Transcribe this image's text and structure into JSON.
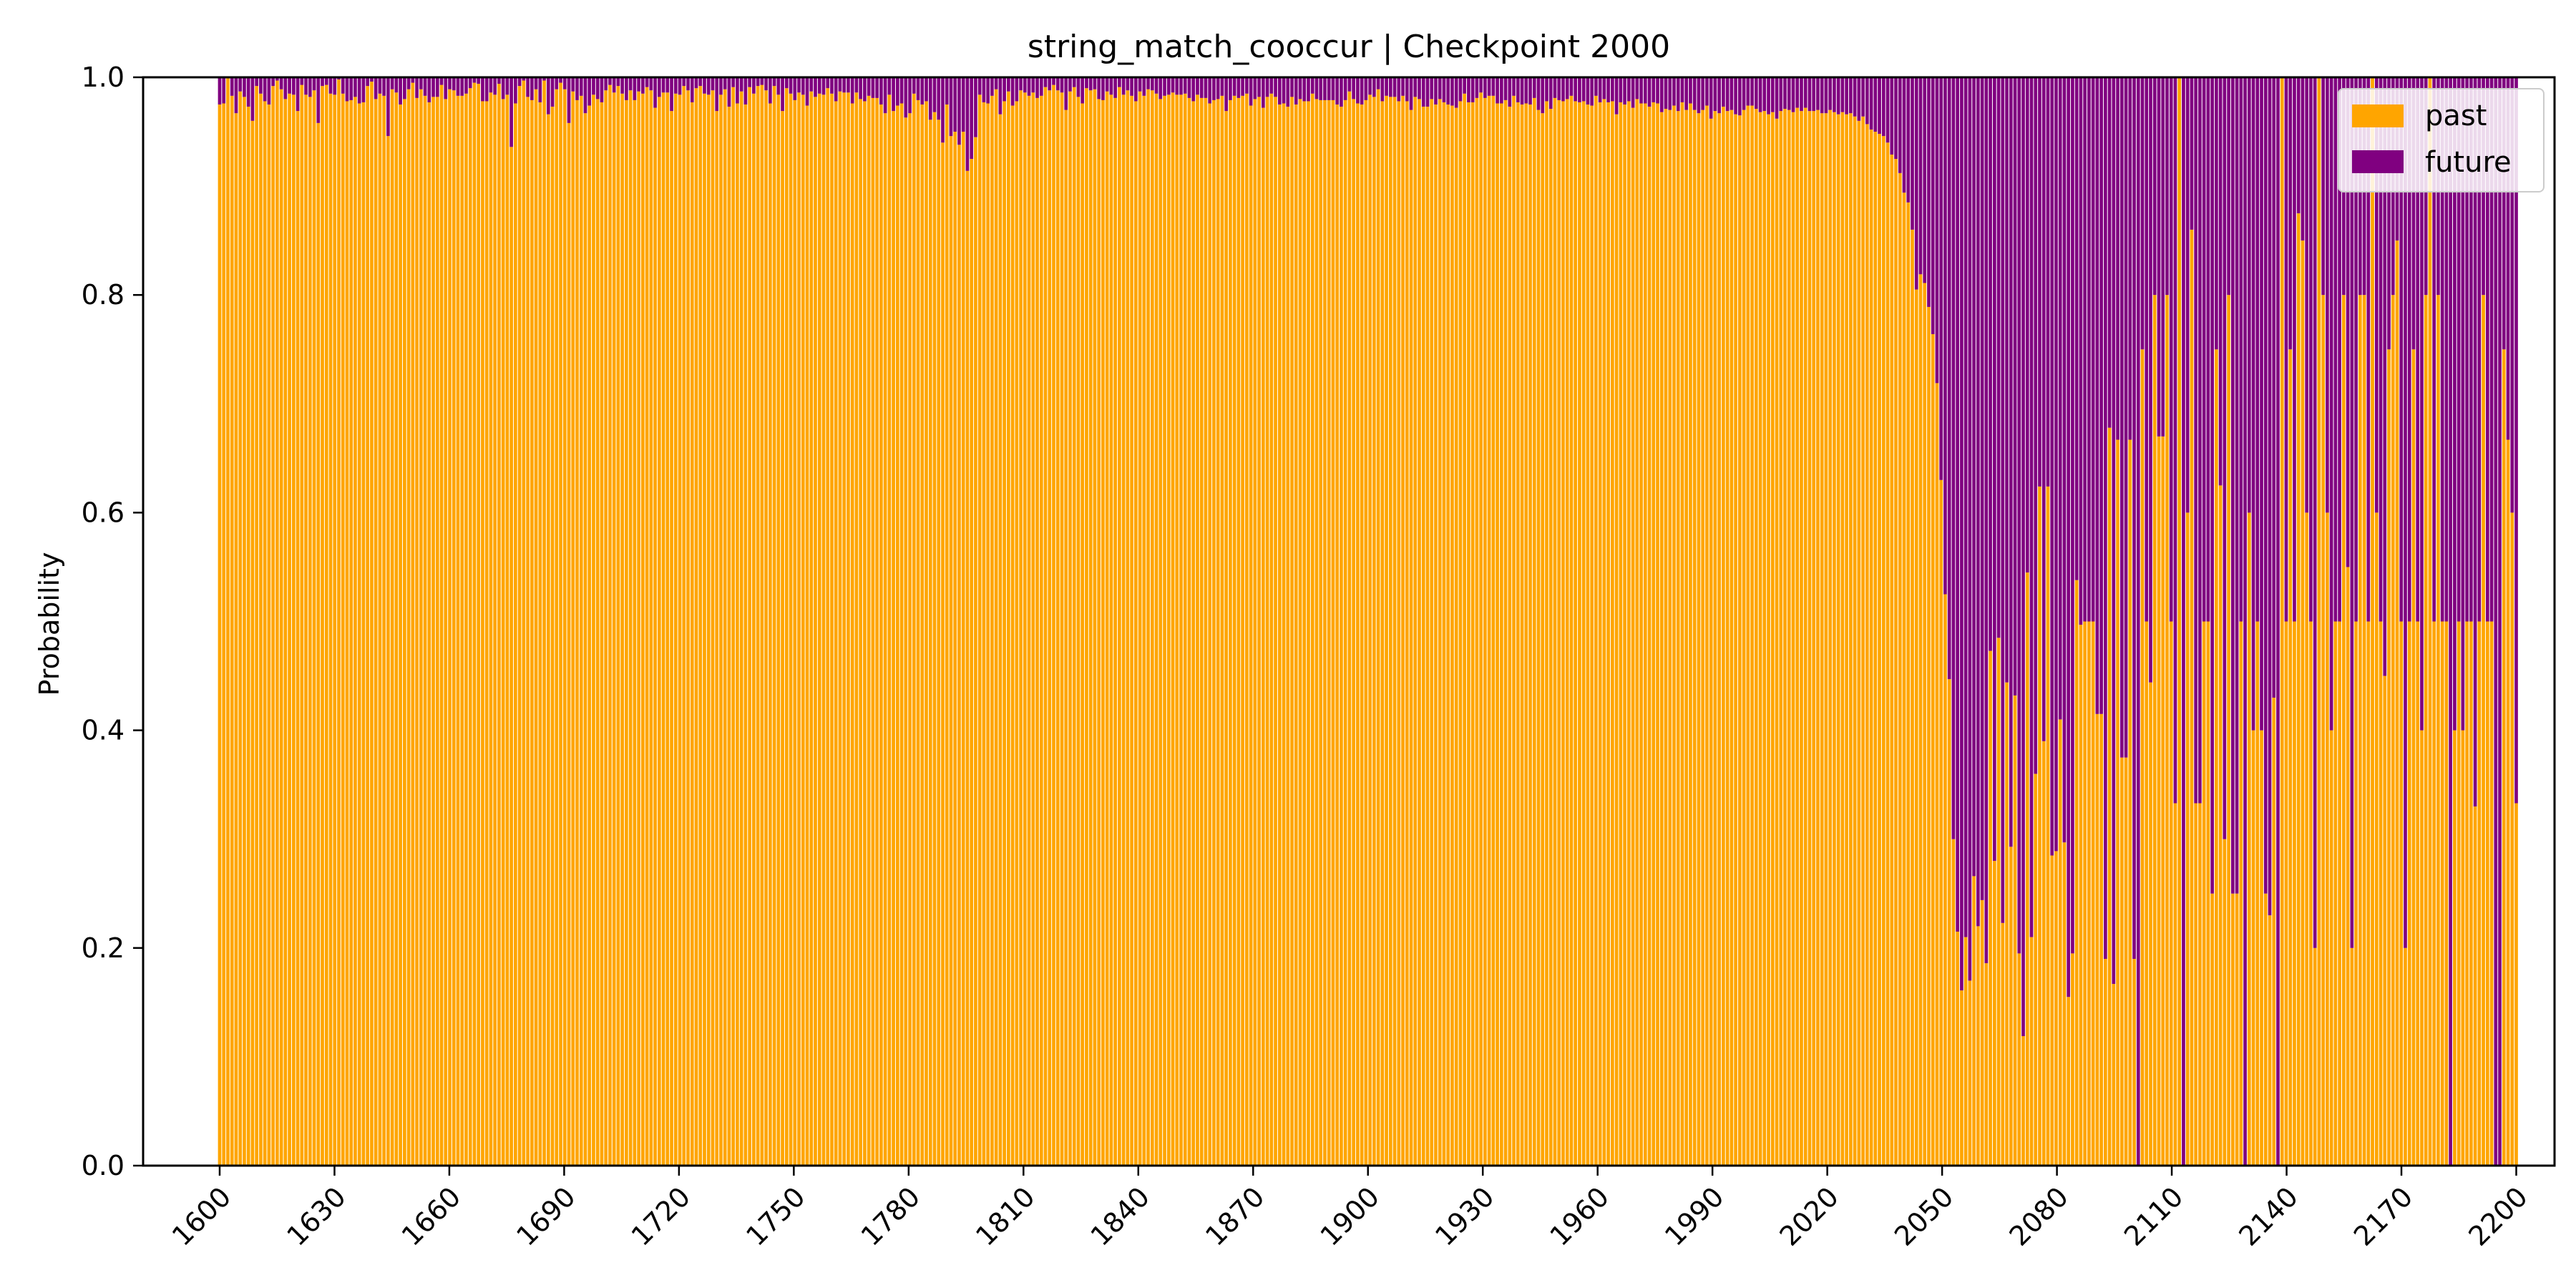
{
  "chart_data": {
    "type": "bar",
    "stacked": true,
    "title": "string_match_cooccur | Checkpoint 2000",
    "xlabel": "",
    "ylabel": "Probability",
    "xlim": [
      1580,
      2210
    ],
    "ylim": [
      0,
      1.0
    ],
    "x_ticks": [
      "1600",
      "1630",
      "1660",
      "1690",
      "1720",
      "1750",
      "1780",
      "1810",
      "1840",
      "1870",
      "1900",
      "1930",
      "1960",
      "1990",
      "2020",
      "2050",
      "2080",
      "2110",
      "2140",
      "2170",
      "2200"
    ],
    "y_ticks": [
      "0.0",
      "0.2",
      "0.4",
      "0.6",
      "0.8",
      "1.0"
    ],
    "legend_position": "top-right",
    "series": [
      {
        "name": "past",
        "color": "#FFA500"
      },
      {
        "name": "future",
        "color": "#800080"
      }
    ],
    "x_start": 1600,
    "x_end": 2200,
    "past_values": [
      0.975,
      0.976,
      0.999,
      0.983,
      0.967,
      0.987,
      0.982,
      0.973,
      0.96,
      0.992,
      0.985,
      0.978,
      0.975,
      0.992,
      0.997,
      0.989,
      0.98,
      0.985,
      0.984,
      0.969,
      0.993,
      0.984,
      0.982,
      0.988,
      0.958,
      0.992,
      0.993,
      0.985,
      0.984,
      0.998,
      0.985,
      0.978,
      0.979,
      0.982,
      0.976,
      0.977,
      0.992,
      0.996,
      0.98,
      0.985,
      0.983,
      0.946,
      0.989,
      0.986,
      0.975,
      0.98,
      0.989,
      0.995,
      0.981,
      0.989,
      0.983,
      0.977,
      0.982,
      0.982,
      0.993,
      0.98,
      0.989,
      0.988,
      0.983,
      0.983,
      0.985,
      0.99,
      0.995,
      0.994,
      0.978,
      0.978,
      0.986,
      0.984,
      0.994,
      0.98,
      0.984,
      0.936,
      0.976,
      0.992,
      0.997,
      0.982,
      0.979,
      0.989,
      0.977,
      0.997,
      0.966,
      0.973,
      0.989,
      0.995,
      0.989,
      0.958,
      0.987,
      0.979,
      0.983,
      0.967,
      0.974,
      0.984,
      0.98,
      0.977,
      0.988,
      0.993,
      0.986,
      0.992,
      0.985,
      0.979,
      0.988,
      0.979,
      0.987,
      0.985,
      0.991,
      0.988,
      0.972,
      0.982,
      0.986,
      0.986,
      0.969,
      0.985,
      0.984,
      0.992,
      0.988,
      0.977,
      0.99,
      0.992,
      0.985,
      0.984,
      0.988,
      0.969,
      0.984,
      0.989,
      0.973,
      0.991,
      0.976,
      0.987,
      0.975,
      0.991,
      0.985,
      0.992,
      0.993,
      0.988,
      0.976,
      0.992,
      0.984,
      0.969,
      0.99,
      0.985,
      0.979,
      0.986,
      0.984,
      0.974,
      0.987,
      0.982,
      0.985,
      0.984,
      0.99,
      0.985,
      0.978,
      0.987,
      0.986,
      0.986,
      0.976,
      0.986,
      0.98,
      0.978,
      0.983,
      0.981,
      0.981,
      0.975,
      0.967,
      0.984,
      0.969,
      0.974,
      0.976,
      0.963,
      0.967,
      0.985,
      0.979,
      0.975,
      0.978,
      0.961,
      0.968,
      0.961,
      0.94,
      0.975,
      0.946,
      0.95,
      0.938,
      0.95,
      0.914,
      0.925,
      0.945,
      0.984,
      0.977,
      0.976,
      0.983,
      0.989,
      0.966,
      0.978,
      0.987,
      0.974,
      0.978,
      0.988,
      0.986,
      0.983,
      0.986,
      0.981,
      0.983,
      0.991,
      0.988,
      0.993,
      0.988,
      0.986,
      0.97,
      0.987,
      0.991,
      0.982,
      0.976,
      0.99,
      0.988,
      0.989,
      0.98,
      0.979,
      0.987,
      0.984,
      0.981,
      0.991,
      0.984,
      0.988,
      0.983,
      0.978,
      0.987,
      0.983,
      0.989,
      0.988,
      0.985,
      0.98,
      0.983,
      0.984,
      0.986,
      0.984,
      0.984,
      0.985,
      0.981,
      0.978,
      0.984,
      0.981,
      0.981,
      0.976,
      0.979,
      0.98,
      0.983,
      0.969,
      0.979,
      0.983,
      0.981,
      0.983,
      0.985,
      0.974,
      0.98,
      0.982,
      0.972,
      0.982,
      0.985,
      0.982,
      0.975,
      0.976,
      0.973,
      0.982,
      0.975,
      0.98,
      0.978,
      0.978,
      0.985,
      0.98,
      0.979,
      0.979,
      0.979,
      0.979,
      0.975,
      0.973,
      0.979,
      0.987,
      0.98,
      0.976,
      0.975,
      0.979,
      0.984,
      0.982,
      0.989,
      0.978,
      0.983,
      0.982,
      0.982,
      0.978,
      0.983,
      0.978,
      0.97,
      0.982,
      0.98,
      0.973,
      0.973,
      0.98,
      0.975,
      0.98,
      0.977,
      0.975,
      0.974,
      0.972,
      0.978,
      0.985,
      0.977,
      0.977,
      0.981,
      0.986,
      0.981,
      0.983,
      0.983,
      0.976,
      0.976,
      0.979,
      0.973,
      0.983,
      0.977,
      0.975,
      0.976,
      0.975,
      0.981,
      0.97,
      0.967,
      0.978,
      0.971,
      0.981,
      0.979,
      0.978,
      0.98,
      0.983,
      0.978,
      0.977,
      0.978,
      0.975,
      0.974,
      0.983,
      0.977,
      0.98,
      0.977,
      0.978,
      0.966,
      0.977,
      0.975,
      0.978,
      0.972,
      0.98,
      0.976,
      0.976,
      0.973,
      0.977,
      0.976,
      0.968,
      0.971,
      0.97,
      0.974,
      0.969,
      0.977,
      0.97,
      0.976,
      0.97,
      0.967,
      0.97,
      0.974,
      0.962,
      0.969,
      0.967,
      0.973,
      0.969,
      0.97,
      0.966,
      0.965,
      0.97,
      0.974,
      0.974,
      0.971,
      0.968,
      0.969,
      0.966,
      0.968,
      0.962,
      0.969,
      0.971,
      0.97,
      0.968,
      0.972,
      0.969,
      0.972,
      0.969,
      0.969,
      0.97,
      0.967,
      0.967,
      0.97,
      0.968,
      0.966,
      0.968,
      0.966,
      0.967,
      0.964,
      0.96,
      0.964,
      0.957,
      0.952,
      0.95,
      0.948,
      0.946,
      0.94,
      0.929,
      0.925,
      0.912,
      0.894,
      0.885,
      0.86,
      0.805,
      0.819,
      0.811,
      0.789,
      0.764,
      0.719,
      0.63,
      0.525,
      0.447,
      0.3,
      0.215,
      0.161,
      0.21,
      0.17,
      0.266,
      0.22,
      0.244,
      0.186,
      0.473,
      0.28,
      0.485,
      0.223,
      0.444,
      0.293,
      0.432,
      0.195,
      0.119,
      0.545,
      0.21,
      0.36,
      0.624,
      0.39,
      0.624,
      0.285,
      0.289,
      0.41,
      0.297,
      0.155,
      0.195,
      0.538,
      0.497,
      0.5,
      0.5,
      0.5,
      0.415,
      0.415,
      0.19,
      0.678,
      0.167,
      0.667,
      0.375,
      0.375,
      0.667,
      0.19,
      0.0,
      0.75,
      0.5,
      0.444,
      0.8,
      0.67,
      0.67,
      0.8,
      0.5,
      0.333,
      1.0,
      0.0,
      0.6,
      0.86,
      0.333,
      0.333,
      0.5,
      0.5,
      0.25,
      0.75,
      0.625,
      0.3,
      0.8,
      0.25,
      0.25,
      0.5,
      0.0,
      0.6,
      0.4,
      0.5,
      0.4,
      0.25,
      0.23,
      0.43,
      0.0,
      1.0,
      0.5,
      0.75,
      0.5,
      0.875,
      0.85,
      0.6,
      0.5,
      0.2,
      1.0,
      0.8,
      0.6,
      0.4,
      0.5,
      0.5,
      0.8,
      0.55,
      0.2,
      0.5,
      0.8,
      0.8,
      0.5,
      1.0,
      0.6,
      0.5,
      0.45,
      0.75,
      0.8,
      0.85,
      0.5,
      0.2,
      0.5,
      0.75,
      0.5,
      0.4,
      0.8,
      1.0,
      0.5,
      0.8,
      0.5,
      0.5,
      0.0,
      0.4,
      0.5,
      0.4,
      0.5,
      0.5,
      0.33,
      0.5,
      0.8,
      0.5,
      0.5,
      0.0,
      0.0,
      0.75,
      0.667,
      0.6,
      0.333
    ]
  }
}
